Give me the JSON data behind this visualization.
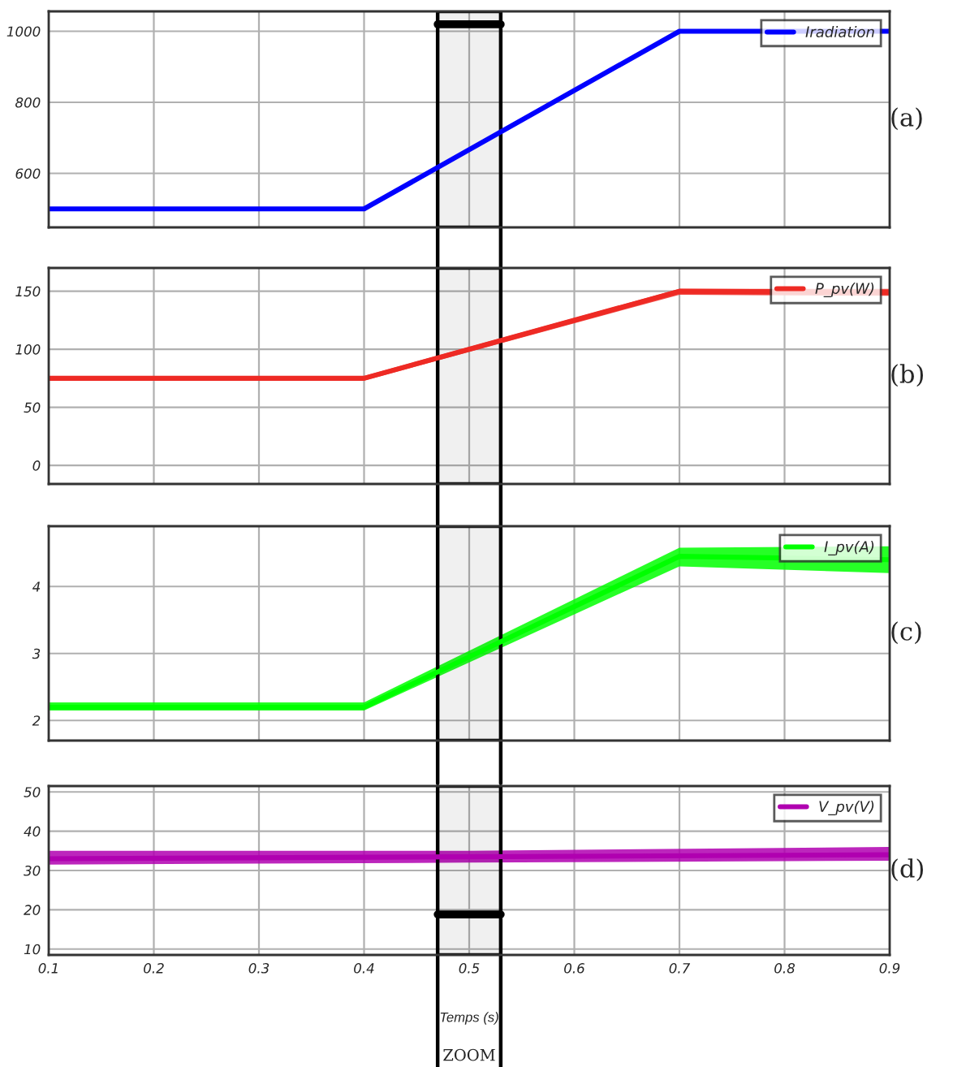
{
  "chart_data": [
    {
      "type": "line",
      "xlim": [
        0.1,
        0.9
      ],
      "xticks": [
        0.1,
        0.2,
        0.3,
        0.4,
        0.5,
        0.6,
        0.7,
        0.8,
        0.9
      ],
      "ylim": [
        448,
        1056
      ],
      "yticks": [
        600,
        800,
        1000
      ],
      "grid": true,
      "legend": "top right",
      "tick_labels": "y",
      "annotations": [
        "(a)"
      ],
      "bands": [
        {
          "axis": "x",
          "from": 0.47,
          "to": 0.53,
          "color": "#000000"
        }
      ],
      "series": [
        {
          "name": "Iradiation",
          "color": "#0000ff",
          "x": [
            0.1,
            0.4,
            0.7,
            0.9
          ],
          "values": [
            500,
            500,
            1000,
            1000
          ]
        }
      ]
    },
    {
      "type": "line",
      "xlim": [
        0.1,
        0.9
      ],
      "xticks": [
        0.1,
        0.2,
        0.3,
        0.4,
        0.5,
        0.6,
        0.7,
        0.8,
        0.9
      ],
      "ylim": [
        -16,
        170
      ],
      "yticks": [
        0,
        50,
        100,
        150
      ],
      "grid": true,
      "legend": "top right",
      "tick_labels": "y",
      "annotations": [
        "(b)"
      ],
      "bands": [
        {
          "axis": "x",
          "from": 0.47,
          "to": 0.53,
          "color": "#000000"
        }
      ],
      "series": [
        {
          "name": "P_pv(W)",
          "color": "#ee2a24",
          "x": [
            0.1,
            0.4,
            0.7,
            0.9
          ],
          "values": [
            75,
            75,
            150,
            149
          ],
          "lower": [
            73,
            73,
            147,
            146
          ],
          "upper": [
            77,
            77,
            152,
            152
          ]
        }
      ]
    },
    {
      "type": "line",
      "xlim": [
        0.1,
        0.9
      ],
      "xticks": [
        0.1,
        0.2,
        0.3,
        0.4,
        0.5,
        0.6,
        0.7,
        0.8,
        0.9
      ],
      "ylim": [
        1.7,
        4.9
      ],
      "yticks": [
        2,
        3,
        4
      ],
      "grid": true,
      "legend": "top right",
      "tick_labels": "y",
      "annotations": [
        "(c)"
      ],
      "bands": [
        {
          "axis": "x",
          "from": 0.47,
          "to": 0.53,
          "color": "#000000"
        }
      ],
      "series": [
        {
          "name": "I_pv(A)",
          "color": "#00ff00",
          "x": [
            0.1,
            0.4,
            0.7,
            0.9
          ],
          "values": [
            2.2,
            2.2,
            4.45,
            4.4
          ],
          "lower": [
            2.15,
            2.15,
            4.3,
            4.2
          ],
          "upper": [
            2.27,
            2.27,
            4.58,
            4.6
          ]
        }
      ]
    },
    {
      "type": "line",
      "xlim": [
        0.1,
        0.9
      ],
      "xticks": [
        0.1,
        0.2,
        0.3,
        0.4,
        0.5,
        0.6,
        0.7,
        0.8,
        0.9
      ],
      "ylim": [
        8.5,
        51.5
      ],
      "yticks": [
        10,
        20,
        30,
        40,
        50
      ],
      "grid": true,
      "legend": "top right",
      "xlabel": "Temps (s)",
      "annotations": [
        "(d)"
      ],
      "bands": [
        {
          "axis": "x",
          "from": 0.47,
          "to": 0.53,
          "color": "#000000",
          "label": "ZOOM"
        }
      ],
      "series": [
        {
          "name": "V_pv(V)",
          "color": "#b000b0",
          "x": [
            0.1,
            0.5,
            0.9
          ],
          "values": [
            33,
            33.5,
            34
          ],
          "lower": [
            31.5,
            32,
            32.5
          ],
          "upper": [
            35,
            35,
            36
          ]
        }
      ]
    }
  ]
}
